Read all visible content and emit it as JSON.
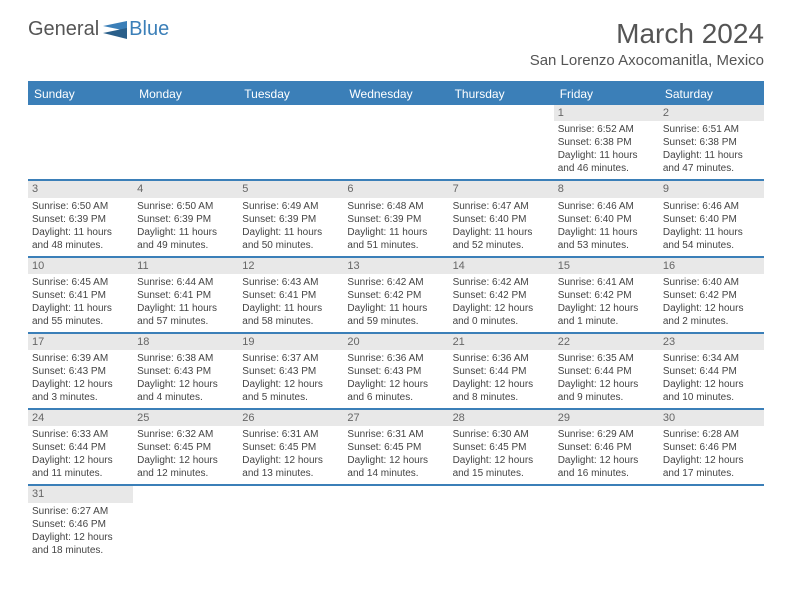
{
  "logo": {
    "textA": "General",
    "textB": "Blue"
  },
  "title": "March 2024",
  "location": "San Lorenzo Axocomanitla, Mexico",
  "colors": {
    "accent": "#3b7fb8",
    "headerBg": "#3b7fb8",
    "headerText": "#ffffff",
    "dayBarBg": "#e8e8e8",
    "text": "#444"
  },
  "weekdays": [
    "Sunday",
    "Monday",
    "Tuesday",
    "Wednesday",
    "Thursday",
    "Friday",
    "Saturday"
  ],
  "weeks": [
    [
      {
        "empty": true
      },
      {
        "empty": true
      },
      {
        "empty": true
      },
      {
        "empty": true
      },
      {
        "empty": true
      },
      {
        "num": "1",
        "sunrise": "6:52 AM",
        "sunset": "6:38 PM",
        "daylight": "11 hours and 46 minutes."
      },
      {
        "num": "2",
        "sunrise": "6:51 AM",
        "sunset": "6:38 PM",
        "daylight": "11 hours and 47 minutes."
      }
    ],
    [
      {
        "num": "3",
        "sunrise": "6:50 AM",
        "sunset": "6:39 PM",
        "daylight": "11 hours and 48 minutes."
      },
      {
        "num": "4",
        "sunrise": "6:50 AM",
        "sunset": "6:39 PM",
        "daylight": "11 hours and 49 minutes."
      },
      {
        "num": "5",
        "sunrise": "6:49 AM",
        "sunset": "6:39 PM",
        "daylight": "11 hours and 50 minutes."
      },
      {
        "num": "6",
        "sunrise": "6:48 AM",
        "sunset": "6:39 PM",
        "daylight": "11 hours and 51 minutes."
      },
      {
        "num": "7",
        "sunrise": "6:47 AM",
        "sunset": "6:40 PM",
        "daylight": "11 hours and 52 minutes."
      },
      {
        "num": "8",
        "sunrise": "6:46 AM",
        "sunset": "6:40 PM",
        "daylight": "11 hours and 53 minutes."
      },
      {
        "num": "9",
        "sunrise": "6:46 AM",
        "sunset": "6:40 PM",
        "daylight": "11 hours and 54 minutes."
      }
    ],
    [
      {
        "num": "10",
        "sunrise": "6:45 AM",
        "sunset": "6:41 PM",
        "daylight": "11 hours and 55 minutes."
      },
      {
        "num": "11",
        "sunrise": "6:44 AM",
        "sunset": "6:41 PM",
        "daylight": "11 hours and 57 minutes."
      },
      {
        "num": "12",
        "sunrise": "6:43 AM",
        "sunset": "6:41 PM",
        "daylight": "11 hours and 58 minutes."
      },
      {
        "num": "13",
        "sunrise": "6:42 AM",
        "sunset": "6:42 PM",
        "daylight": "11 hours and 59 minutes."
      },
      {
        "num": "14",
        "sunrise": "6:42 AM",
        "sunset": "6:42 PM",
        "daylight": "12 hours and 0 minutes."
      },
      {
        "num": "15",
        "sunrise": "6:41 AM",
        "sunset": "6:42 PM",
        "daylight": "12 hours and 1 minute."
      },
      {
        "num": "16",
        "sunrise": "6:40 AM",
        "sunset": "6:42 PM",
        "daylight": "12 hours and 2 minutes."
      }
    ],
    [
      {
        "num": "17",
        "sunrise": "6:39 AM",
        "sunset": "6:43 PM",
        "daylight": "12 hours and 3 minutes."
      },
      {
        "num": "18",
        "sunrise": "6:38 AM",
        "sunset": "6:43 PM",
        "daylight": "12 hours and 4 minutes."
      },
      {
        "num": "19",
        "sunrise": "6:37 AM",
        "sunset": "6:43 PM",
        "daylight": "12 hours and 5 minutes."
      },
      {
        "num": "20",
        "sunrise": "6:36 AM",
        "sunset": "6:43 PM",
        "daylight": "12 hours and 6 minutes."
      },
      {
        "num": "21",
        "sunrise": "6:36 AM",
        "sunset": "6:44 PM",
        "daylight": "12 hours and 8 minutes."
      },
      {
        "num": "22",
        "sunrise": "6:35 AM",
        "sunset": "6:44 PM",
        "daylight": "12 hours and 9 minutes."
      },
      {
        "num": "23",
        "sunrise": "6:34 AM",
        "sunset": "6:44 PM",
        "daylight": "12 hours and 10 minutes."
      }
    ],
    [
      {
        "num": "24",
        "sunrise": "6:33 AM",
        "sunset": "6:44 PM",
        "daylight": "12 hours and 11 minutes."
      },
      {
        "num": "25",
        "sunrise": "6:32 AM",
        "sunset": "6:45 PM",
        "daylight": "12 hours and 12 minutes."
      },
      {
        "num": "26",
        "sunrise": "6:31 AM",
        "sunset": "6:45 PM",
        "daylight": "12 hours and 13 minutes."
      },
      {
        "num": "27",
        "sunrise": "6:31 AM",
        "sunset": "6:45 PM",
        "daylight": "12 hours and 14 minutes."
      },
      {
        "num": "28",
        "sunrise": "6:30 AM",
        "sunset": "6:45 PM",
        "daylight": "12 hours and 15 minutes."
      },
      {
        "num": "29",
        "sunrise": "6:29 AM",
        "sunset": "6:46 PM",
        "daylight": "12 hours and 16 minutes."
      },
      {
        "num": "30",
        "sunrise": "6:28 AM",
        "sunset": "6:46 PM",
        "daylight": "12 hours and 17 minutes."
      }
    ],
    [
      {
        "num": "31",
        "sunrise": "6:27 AM",
        "sunset": "6:46 PM",
        "daylight": "12 hours and 18 minutes."
      },
      {
        "empty": true
      },
      {
        "empty": true
      },
      {
        "empty": true
      },
      {
        "empty": true
      },
      {
        "empty": true
      },
      {
        "empty": true
      }
    ]
  ],
  "labels": {
    "sunrisePrefix": "Sunrise: ",
    "sunsetPrefix": "Sunset: ",
    "daylightPrefix": "Daylight: "
  }
}
